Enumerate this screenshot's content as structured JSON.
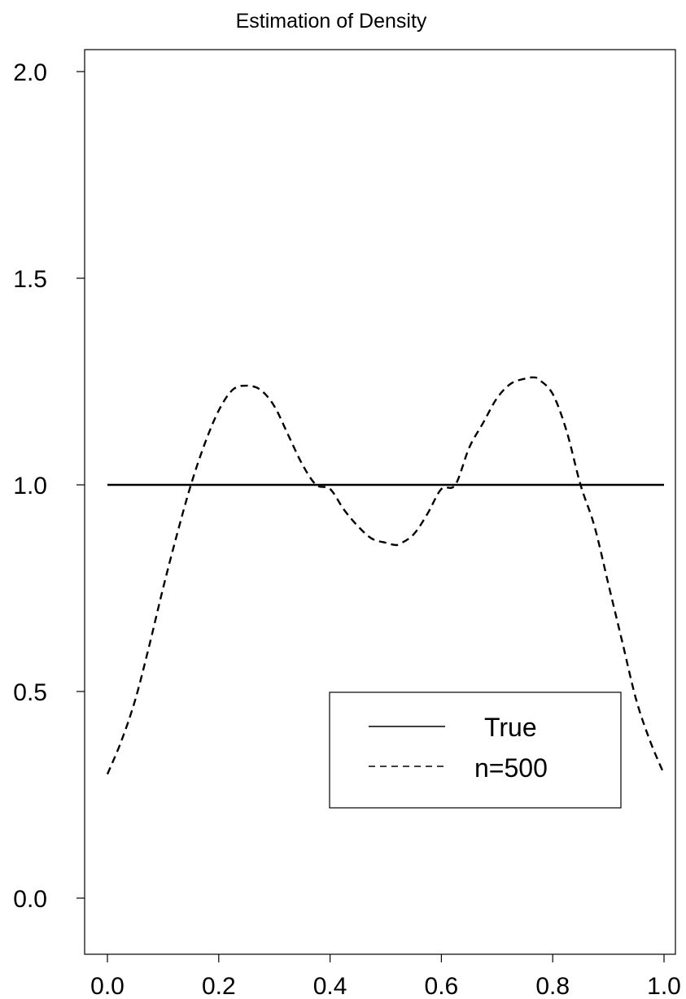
{
  "chart_data": {
    "type": "line",
    "title": "Estimation of Density",
    "xlabel": "",
    "ylabel": "",
    "xlim": [
      0.0,
      1.0
    ],
    "ylim": [
      0.0,
      2.0
    ],
    "xticks": [
      "0.0",
      "0.2",
      "0.4",
      "0.6",
      "0.8",
      "1.0"
    ],
    "yticks": [
      "0.0",
      "0.5",
      "1.0",
      "1.5",
      "2.0"
    ],
    "grid": false,
    "legend_position": "bottom-right",
    "series": [
      {
        "name": "True",
        "style": "solid",
        "color": "#000000",
        "x": [
          0.0,
          1.0
        ],
        "y": [
          1.0,
          1.0
        ]
      },
      {
        "name": "n=500",
        "style": "dashed",
        "color": "#000000",
        "x": [
          0.0,
          0.025,
          0.05,
          0.075,
          0.1,
          0.125,
          0.15,
          0.175,
          0.2,
          0.225,
          0.25,
          0.275,
          0.3,
          0.325,
          0.35,
          0.375,
          0.4,
          0.425,
          0.45,
          0.475,
          0.5,
          0.515,
          0.525,
          0.55,
          0.575,
          0.6,
          0.625,
          0.65,
          0.675,
          0.7,
          0.725,
          0.75,
          0.765,
          0.775,
          0.8,
          0.825,
          0.85,
          0.875,
          0.9,
          0.925,
          0.95,
          0.975,
          1.0
        ],
        "y": [
          0.3,
          0.38,
          0.48,
          0.61,
          0.75,
          0.88,
          1.0,
          1.1,
          1.18,
          1.23,
          1.24,
          1.23,
          1.19,
          1.12,
          1.05,
          1.0,
          0.99,
          0.94,
          0.9,
          0.87,
          0.86,
          0.855,
          0.857,
          0.88,
          0.93,
          0.99,
          1.0,
          1.09,
          1.15,
          1.21,
          1.245,
          1.257,
          1.26,
          1.255,
          1.22,
          1.13,
          1.0,
          0.9,
          0.76,
          0.62,
          0.48,
          0.38,
          0.3
        ]
      }
    ]
  }
}
